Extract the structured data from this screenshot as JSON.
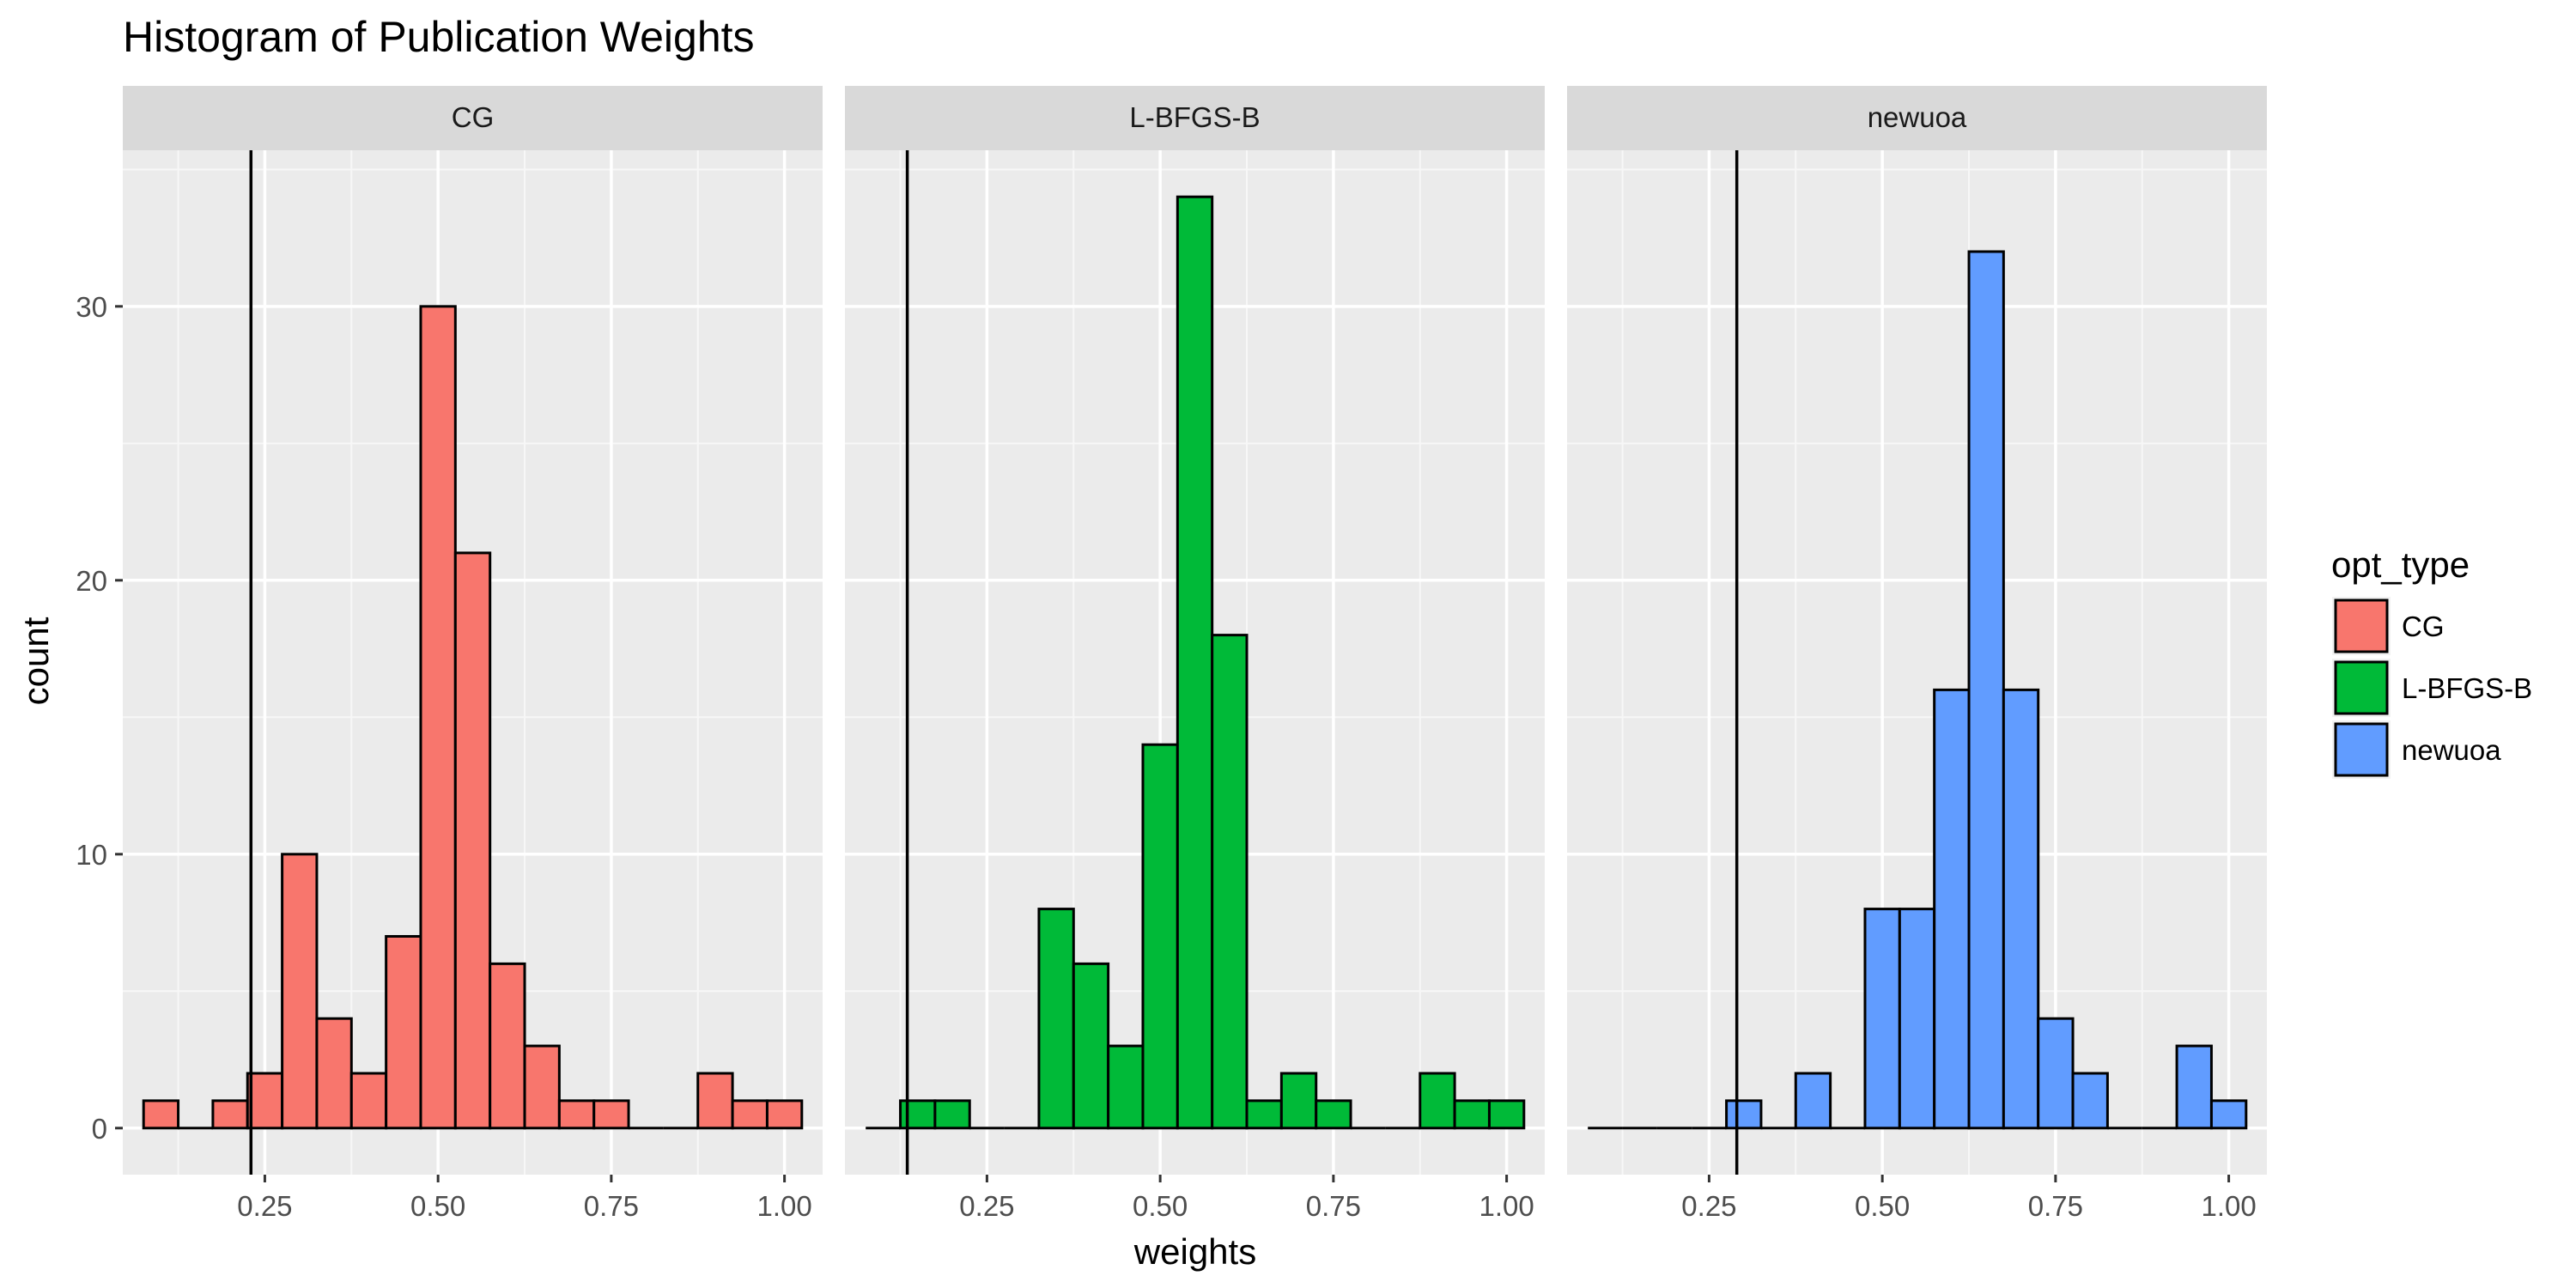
{
  "chart_data": {
    "type": "bar",
    "title": "Histogram of Publication Weights",
    "xlabel": "weights",
    "ylabel": "count",
    "x_ticks": [
      "0.25",
      "0.50",
      "0.75",
      "1.00"
    ],
    "y_ticks": [
      "0",
      "10",
      "20",
      "30"
    ],
    "xlim": [
      0.045,
      1.055
    ],
    "ylim": [
      -1.7,
      35.7
    ],
    "grid": true,
    "legend": {
      "title": "opt_type",
      "placement": "right",
      "entries": [
        "CG",
        "L-BFGS-B",
        "newuoa"
      ]
    },
    "bin_width": 0.05,
    "bin_centers": [
      0.1,
      0.15,
      0.2,
      0.25,
      0.3,
      0.35,
      0.4,
      0.45,
      0.5,
      0.55,
      0.6,
      0.65,
      0.7,
      0.75,
      0.8,
      0.85,
      0.9,
      0.95,
      1.0
    ],
    "series": [
      {
        "name": "CG",
        "color": "#F8766D",
        "vline": 0.23,
        "counts": [
          1,
          0,
          1,
          2,
          10,
          4,
          2,
          7,
          30,
          21,
          6,
          3,
          1,
          1,
          0,
          0,
          2,
          1,
          1
        ]
      },
      {
        "name": "L-BFGS-B",
        "color": "#00BA38",
        "vline": 0.135,
        "counts": [
          0,
          1,
          1,
          0,
          0,
          8,
          6,
          3,
          14,
          34,
          18,
          1,
          2,
          1,
          0,
          0,
          2,
          1,
          1
        ]
      },
      {
        "name": "newuoa",
        "color": "#619CFF",
        "vline": 0.29,
        "counts": [
          0,
          0,
          0,
          0,
          1,
          0,
          2,
          0,
          8,
          8,
          16,
          32,
          16,
          4,
          2,
          0,
          0,
          3,
          1
        ]
      }
    ]
  }
}
